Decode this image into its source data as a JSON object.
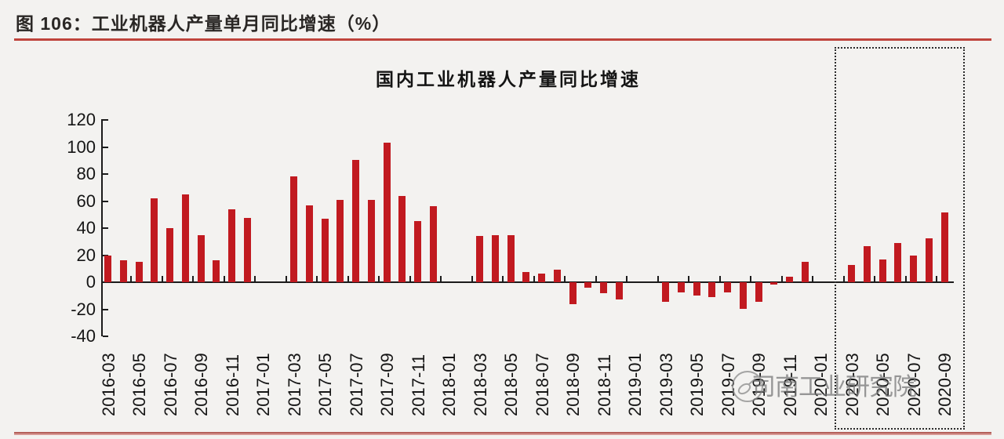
{
  "header": {
    "figure_label": "图 106：工业机器人产量单月同比增速（%）",
    "accent_color": "#bf443c"
  },
  "watermark": {
    "icon": "compass-icon",
    "text": "司南工业研究院"
  },
  "chart_data": {
    "type": "bar",
    "title": "国内工业机器人产量同比增速",
    "xlabel": "",
    "ylabel": "",
    "bar_color": "#c11a20",
    "axis_color": "#1b1b1b",
    "grid": false,
    "legend": null,
    "ylim": [
      -40,
      120
    ],
    "ytick_interval": 20,
    "yticks": [
      120,
      100,
      80,
      60,
      40,
      20,
      0,
      -20,
      -40
    ],
    "xtick_every_n_months": 2,
    "highlight_box": {
      "from": "2020-02",
      "to": "2020-09",
      "style": "dotted"
    },
    "categories": [
      "2016-03",
      "2016-04",
      "2016-05",
      "2016-06",
      "2016-07",
      "2016-08",
      "2016-09",
      "2016-10",
      "2016-11",
      "2016-12",
      "2017-01",
      "2017-02",
      "2017-03",
      "2017-04",
      "2017-05",
      "2017-06",
      "2017-07",
      "2017-08",
      "2017-09",
      "2017-10",
      "2017-11",
      "2017-12",
      "2018-01",
      "2018-02",
      "2018-03",
      "2018-04",
      "2018-05",
      "2018-06",
      "2018-07",
      "2018-08",
      "2018-09",
      "2018-10",
      "2018-11",
      "2018-12",
      "2019-01",
      "2019-02",
      "2019-03",
      "2019-04",
      "2019-05",
      "2019-06",
      "2019-07",
      "2019-08",
      "2019-09",
      "2019-10",
      "2019-11",
      "2019-12",
      "2020-01",
      "2020-02",
      "2020-03",
      "2020-04",
      "2020-05",
      "2020-06",
      "2020-07",
      "2020-08",
      "2020-09"
    ],
    "values": [
      20,
      16,
      15,
      62,
      40,
      65,
      35,
      16,
      54,
      47.5,
      null,
      null,
      78,
      57,
      47,
      61,
      90.5,
      61,
      103,
      63.5,
      45.5,
      56,
      null,
      null,
      34,
      35,
      35,
      7.5,
      6.5,
      9,
      -16.5,
      -4,
      -8,
      -13,
      null,
      null,
      -14.5,
      -7.5,
      -10,
      -11,
      -7.5,
      -19.5,
      -14.5,
      -1.5,
      4,
      15,
      null,
      null,
      13,
      26.5,
      17,
      29,
      19.5,
      32.5,
      51.5
    ]
  }
}
